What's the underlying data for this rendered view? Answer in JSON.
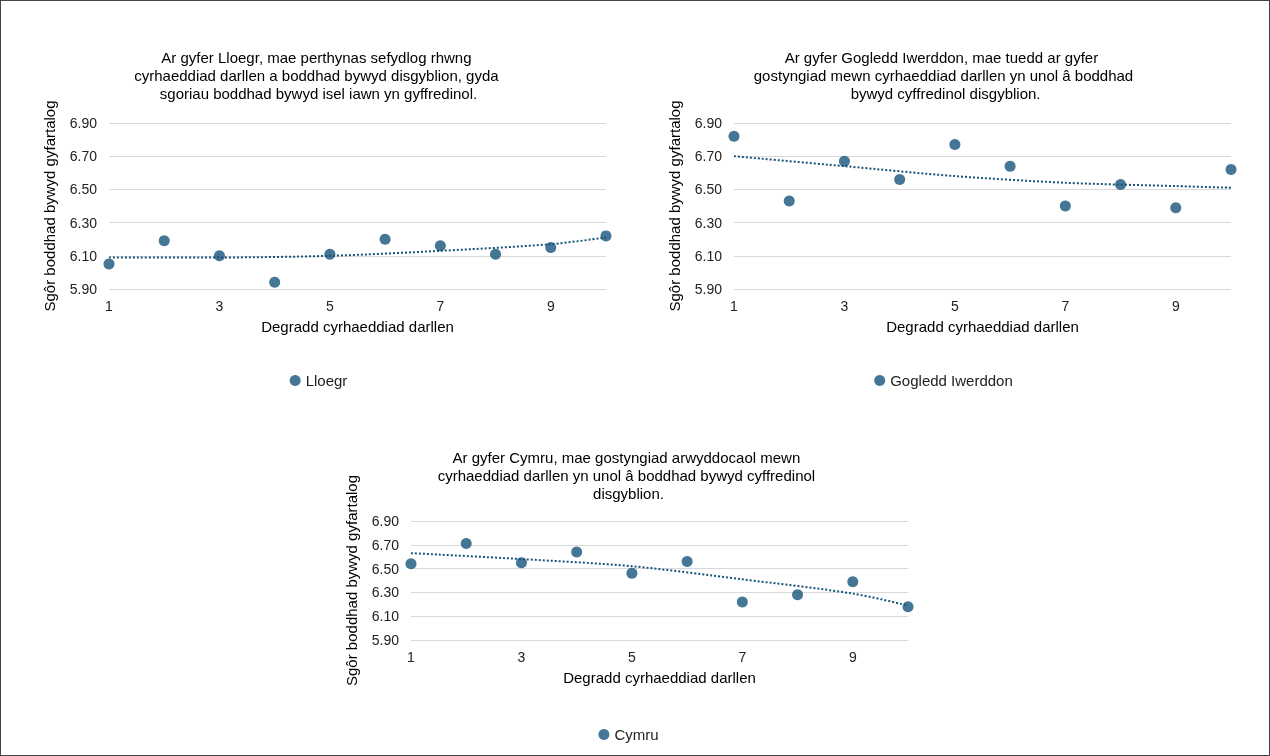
{
  "chart_data": [
    {
      "type": "scatter",
      "title": "Ar gyfer Lloegr, mae perthynas sefydlog rhwng cyrhaeddiad darllen a boddhad bywyd disgyblion, gyda sgoriau boddhad bywyd isel iawn yn gyffredinol.",
      "xlabel": "Degradd cyrhaeddiad darllen",
      "ylabel": "Sgôr boddhad bywyd gyfartalog",
      "xlim": [
        1,
        10
      ],
      "xticks": [
        1,
        3,
        5,
        7,
        9
      ],
      "ylim": [
        5.9,
        6.9
      ],
      "yticks": [
        {
          "value": 5.9,
          "label": "5.90"
        },
        {
          "value": 6.1,
          "label": "6.10"
        },
        {
          "value": 6.3,
          "label": "6.30"
        },
        {
          "value": 6.5,
          "label": "6.50"
        },
        {
          "value": 6.7,
          "label": "6.70"
        },
        {
          "value": 6.9,
          "label": "6.90"
        }
      ],
      "grid": "y",
      "legend": "bottom",
      "series": [
        {
          "name": "Lloegr",
          "marker": "circle",
          "color": "#16547a",
          "x": [
            1,
            2,
            3,
            4,
            5,
            6,
            7,
            8,
            9,
            10
          ],
          "values": [
            6.05,
            6.19,
            6.1,
            5.94,
            6.11,
            6.2,
            6.16,
            6.11,
            6.15,
            6.22
          ]
        },
        {
          "type": "line",
          "marker": "none",
          "line_style": "dotted",
          "color": "#16547a",
          "x": [
            1,
            3,
            5,
            7,
            9,
            10
          ],
          "values": [
            6.09,
            6.09,
            6.1,
            6.13,
            6.17,
            6.21
          ]
        }
      ]
    },
    {
      "type": "scatter",
      "title": "Ar gyfer Gogledd Iwerddon, mae tuedd ar gyfer gostyngiad mewn cyrhaeddiad darllen yn unol â boddhad bywyd cyffredinol disgyblion.",
      "xlabel": "Degradd cyrhaeddiad darllen",
      "ylabel": "Sgôr boddhad bywyd gyfartalog",
      "xlim": [
        1,
        10
      ],
      "xticks": [
        1,
        3,
        5,
        7,
        9
      ],
      "ylim": [
        5.9,
        6.9
      ],
      "yticks": [
        {
          "value": 5.9,
          "label": "5.90"
        },
        {
          "value": 6.1,
          "label": "6.10"
        },
        {
          "value": 6.3,
          "label": "6.30"
        },
        {
          "value": 6.5,
          "label": "6.50"
        },
        {
          "value": 6.7,
          "label": "6.70"
        },
        {
          "value": 6.9,
          "label": "6.90"
        }
      ],
      "grid": "y",
      "legend": "bottom",
      "series": [
        {
          "name": "Gogledd Iwerddon",
          "marker": "circle",
          "color": "#16547a",
          "x": [
            1,
            2,
            3,
            4,
            5,
            6,
            7,
            8,
            9,
            10
          ],
          "values": [
            6.82,
            6.43,
            6.67,
            6.56,
            6.77,
            6.64,
            6.4,
            6.53,
            6.39,
            6.62
          ]
        },
        {
          "type": "line",
          "marker": "none",
          "line_style": "dotted",
          "color": "#16547a",
          "x": [
            1,
            3,
            5,
            7,
            9,
            10
          ],
          "values": [
            6.7,
            6.64,
            6.58,
            6.54,
            6.52,
            6.51
          ]
        }
      ]
    },
    {
      "type": "scatter",
      "title": "Ar gyfer Cymru, mae gostyngiad arwyddocaol mewn cyrhaeddiad darllen yn unol â boddhad bywyd cyffredinol disgyblion.",
      "xlabel": "Degradd cyrhaeddiad darllen",
      "ylabel": "Sgôr boddhad bywyd gyfartalog",
      "xlim": [
        1,
        10
      ],
      "xticks": [
        1,
        3,
        5,
        7,
        9
      ],
      "ylim": [
        5.9,
        6.9
      ],
      "yticks": [
        {
          "value": 5.9,
          "label": "5.90"
        },
        {
          "value": 6.1,
          "label": "6.10"
        },
        {
          "value": 6.3,
          "label": "6.30"
        },
        {
          "value": 6.5,
          "label": "6.50"
        },
        {
          "value": 6.7,
          "label": "6.70"
        },
        {
          "value": 6.9,
          "label": "6.90"
        }
      ],
      "grid": "y",
      "legend": "bottom",
      "series": [
        {
          "name": "Cymru",
          "marker": "circle",
          "color": "#16547a",
          "x": [
            1,
            2,
            3,
            4,
            5,
            6,
            7,
            8,
            9,
            10
          ],
          "values": [
            6.54,
            6.71,
            6.55,
            6.64,
            6.46,
            6.56,
            6.22,
            6.28,
            6.39,
            6.18
          ]
        },
        {
          "type": "line",
          "marker": "none",
          "line_style": "dotted",
          "color": "#16547a",
          "x": [
            1,
            3,
            5,
            7,
            9,
            10
          ],
          "values": [
            6.63,
            6.58,
            6.52,
            6.41,
            6.29,
            6.19
          ]
        }
      ]
    }
  ]
}
